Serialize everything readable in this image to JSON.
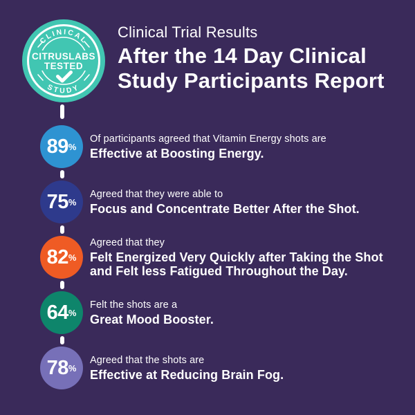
{
  "background_color": "#3a2a5a",
  "text_color": "#ffffff",
  "percent_suffix": "%",
  "badge": {
    "color": "#41c6b2",
    "top_arc_text": "CLINICAL",
    "bottom_arc_text": "STUDY",
    "center_line1": "CITRUSLABS",
    "center_line2": "TESTED",
    "checkmark_icon": "check-icon"
  },
  "header": {
    "eyebrow": "Clinical Trial Results",
    "title_line1": "After the 14 Day Clinical",
    "title_line2": "Study Participants Report"
  },
  "items": [
    {
      "percent": "89",
      "label": "Of participants agreed that Vitamin Energy shots are",
      "claim": "Effective at Boosting Energy.",
      "color": "#2e93d2"
    },
    {
      "percent": "75",
      "label": "Agreed that they were able to",
      "claim": "Focus and Concentrate Better After the Shot.",
      "color": "#2e3a8c"
    },
    {
      "percent": "82",
      "label": "Agreed that they",
      "claim": "Felt Energized Very Quickly after Taking the Shot\nand Felt less Fatigued Throughout the Day.",
      "color": "#ef5b24"
    },
    {
      "percent": "64",
      "label": "Felt the shots are a",
      "claim": "Great Mood Booster.",
      "color": "#0e856b"
    },
    {
      "percent": "78",
      "label": "Agreed that the shots are",
      "claim": "Effective at Reducing Brain Fog.",
      "color": "#7770b8"
    }
  ],
  "chart_data": {
    "type": "table",
    "title": "After the 14 Day Clinical Study Participants Report",
    "subtitle": "Clinical Trial Results",
    "unit": "%",
    "categories": [
      "Effective at Boosting Energy.",
      "Focus and Concentrate Better After the Shot.",
      "Felt Energized Very Quickly after Taking the Shot and Felt less Fatigued Throughout the Day.",
      "Great Mood Booster.",
      "Effective at Reducing Brain Fog."
    ],
    "values": [
      89,
      75,
      82,
      64,
      78
    ],
    "colors": [
      "#2e93d2",
      "#2e3a8c",
      "#ef5b24",
      "#0e856b",
      "#7770b8"
    ]
  }
}
